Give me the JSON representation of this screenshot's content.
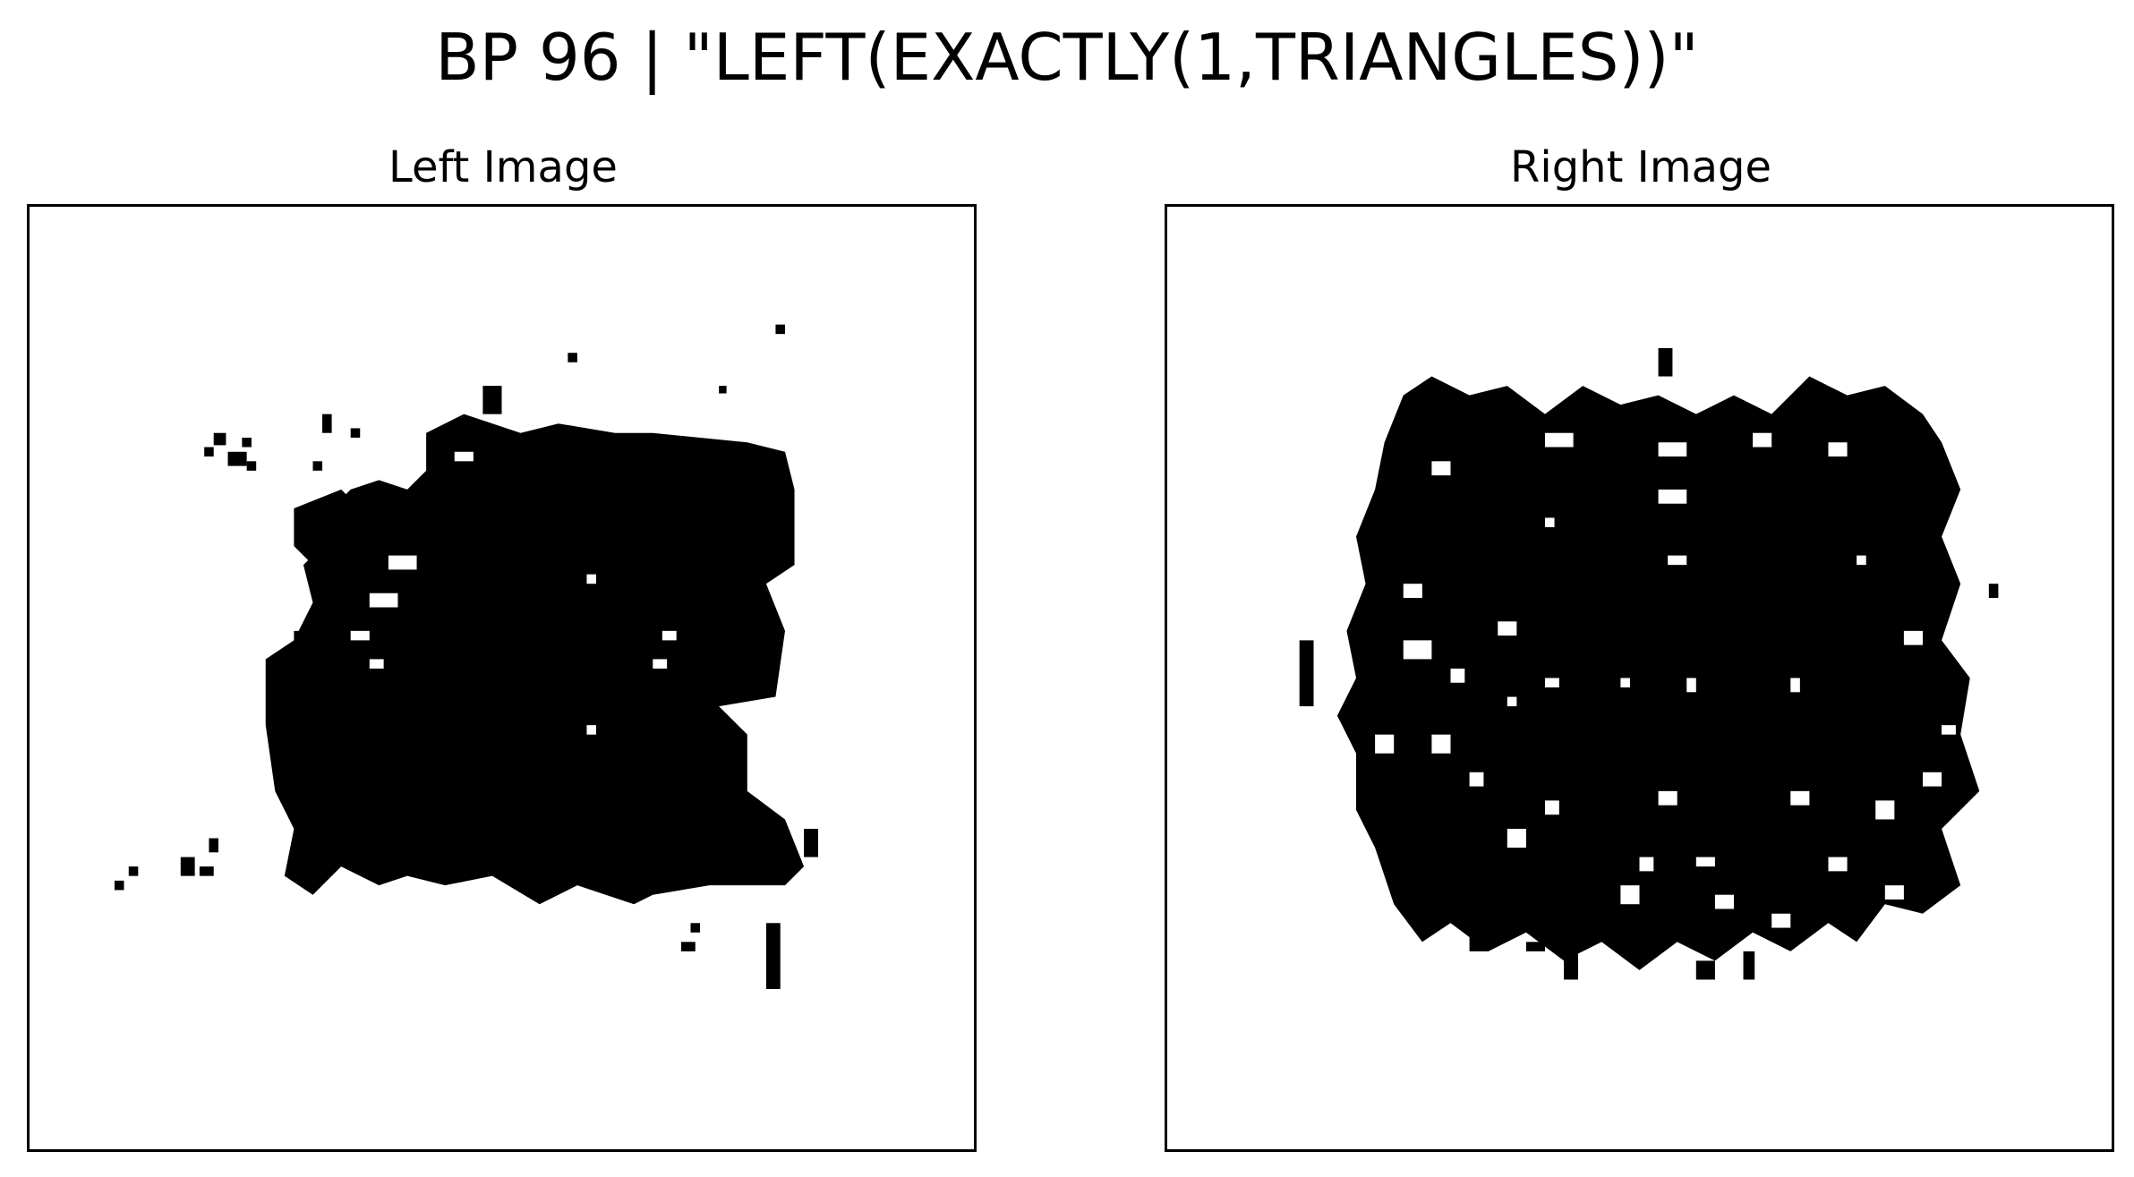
{
  "figure": {
    "title": "BP 96 | \"LEFT(EXACTLY(1,TRIANGLES))\""
  },
  "panels": [
    {
      "title": "Left Image"
    },
    {
      "title": "Right Image"
    }
  ],
  "colors": {
    "ink": "#000000",
    "paper": "#ffffff"
  }
}
